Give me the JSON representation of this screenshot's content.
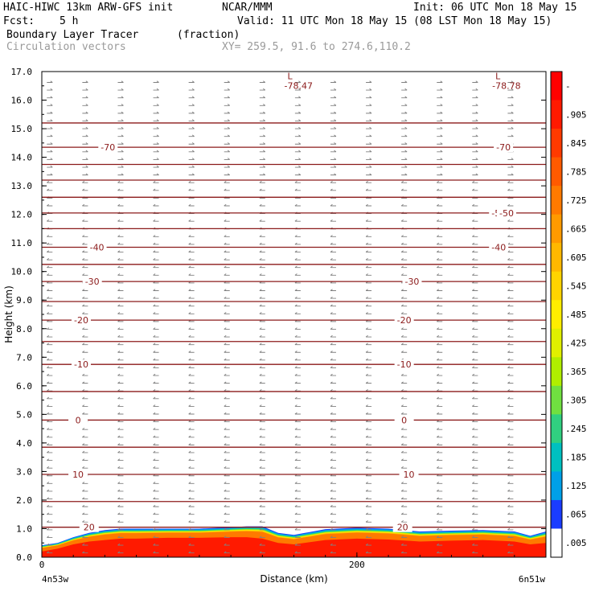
{
  "header": {
    "line1_left": "HAIC-HIWC 13km ARW-GFS init",
    "line1_mid": "NCAR/MMM",
    "line1_right": "Init: 06 UTC Mon 18 May 15",
    "fcst_label": "Fcst:",
    "fcst_value": "5 h",
    "valid": "Valid: 11 UTC Mon 18 May 15 (08 LST Mon 18 May 15)",
    "field_name": "Boundary Layer Tracer",
    "field_units": "(fraction)",
    "vectors_label": "Circulation vectors",
    "xy_label": "XY= 259.5, 91.6 to 274.6,110.2"
  },
  "chart_data": {
    "type": "heatmap",
    "title": "Boundary Layer Tracer",
    "units": "(fraction)",
    "xlabel": "Distance (km)",
    "ylabel": "Height (km)",
    "xlim": [
      0,
      320
    ],
    "ylim": [
      0,
      17
    ],
    "x_ticks": [
      {
        "value": 0,
        "label": "0"
      },
      {
        "value": 200,
        "label": "200"
      }
    ],
    "x_end_labels": {
      "left": "4n53w",
      "right": "6n51w"
    },
    "y_ticks": [
      {
        "value": 0,
        "label": "0.0"
      },
      {
        "value": 1,
        "label": "1.0"
      },
      {
        "value": 2,
        "label": "2.0"
      },
      {
        "value": 3,
        "label": "3.0"
      },
      {
        "value": 4,
        "label": "4.0"
      },
      {
        "value": 5,
        "label": "5.0"
      },
      {
        "value": 6,
        "label": "6.0"
      },
      {
        "value": 7,
        "label": "7.0"
      },
      {
        "value": 8,
        "label": "8.0"
      },
      {
        "value": 9,
        "label": "9.0"
      },
      {
        "value": 10,
        "label": "10.0"
      },
      {
        "value": 11,
        "label": "11.0"
      },
      {
        "value": 12,
        "label": "12.0"
      },
      {
        "value": 13,
        "label": "13.0"
      },
      {
        "value": 14,
        "label": "14.0"
      },
      {
        "value": 15,
        "label": "15.0"
      },
      {
        "value": 16,
        "label": "16.0"
      },
      {
        "value": 17,
        "label": "17.0"
      }
    ],
    "colorbar": {
      "labels": [
        "-",
        ".905",
        ".845",
        ".785",
        ".725",
        ".665",
        ".605",
        ".545",
        ".485",
        ".425",
        ".365",
        ".305",
        ".245",
        ".185",
        ".125",
        ".065",
        ".005"
      ],
      "colors": [
        "#ff0000",
        "#ff1a00",
        "#ff3a00",
        "#ff5a00",
        "#ff7a00",
        "#ff9a00",
        "#ffb800",
        "#ffd400",
        "#ffee00",
        "#e0f000",
        "#b0ee00",
        "#70e040",
        "#30d080",
        "#00c0c0",
        "#00a0e8",
        "#1a3cff",
        "#ffffff"
      ]
    },
    "tracer_profile": {
      "x_km": [
        0,
        10,
        20,
        30,
        40,
        50,
        60,
        80,
        100,
        120,
        130,
        140,
        150,
        160,
        180,
        200,
        220,
        240,
        260,
        280,
        300,
        310,
        320
      ],
      "top_km": [
        0.42,
        0.5,
        0.7,
        0.85,
        0.95,
        1.0,
        1.0,
        1.0,
        1.0,
        1.05,
        1.08,
        1.08,
        0.85,
        0.78,
        0.98,
        1.03,
        1.0,
        0.9,
        0.93,
        0.95,
        0.9,
        0.75,
        0.9
      ],
      "core_top_km": [
        0.2,
        0.3,
        0.45,
        0.55,
        0.6,
        0.65,
        0.65,
        0.68,
        0.68,
        0.7,
        0.7,
        0.65,
        0.5,
        0.45,
        0.6,
        0.65,
        0.62,
        0.55,
        0.58,
        0.6,
        0.55,
        0.45,
        0.5
      ]
    },
    "temperature_contours": [
      {
        "level": "20",
        "y_km": 1.05,
        "labels_at_km": [
          30,
          229
        ]
      },
      {
        "level": "",
        "y_km": 1.95,
        "labels_at_km": []
      },
      {
        "level": "10",
        "y_km": 2.9,
        "labels_at_km": [
          23,
          233
        ]
      },
      {
        "level": "",
        "y_km": 3.85,
        "labels_at_km": []
      },
      {
        "level": "0",
        "y_km": 4.8,
        "labels_at_km": [
          23,
          230
        ]
      },
      {
        "level": "",
        "y_km": 5.8,
        "labels_at_km": []
      },
      {
        "level": "-10",
        "y_km": 6.75,
        "labels_at_km": [
          25,
          230
        ]
      },
      {
        "level": "",
        "y_km": 7.55,
        "labels_at_km": []
      },
      {
        "level": "-20",
        "y_km": 8.3,
        "labels_at_km": [
          25,
          230
        ]
      },
      {
        "level": "",
        "y_km": 8.95,
        "labels_at_km": []
      },
      {
        "level": "-30",
        "y_km": 9.65,
        "labels_at_km": [
          32,
          235
        ]
      },
      {
        "level": "",
        "y_km": 10.25,
        "labels_at_km": []
      },
      {
        "level": "-40",
        "y_km": 10.85,
        "labels_at_km": [
          35,
          290
        ]
      },
      {
        "level": "",
        "y_km": 11.5,
        "labels_at_km": []
      },
      {
        "level": "-50",
        "y_km": 12.05,
        "labels_at_km": [
          290,
          295
        ]
      },
      {
        "level": "",
        "y_km": 12.6,
        "labels_at_km": []
      },
      {
        "level": "",
        "y_km": 13.2,
        "labels_at_km": []
      },
      {
        "level": "",
        "y_km": 13.75,
        "labels_at_km": []
      },
      {
        "level": "-70",
        "y_km": 14.35,
        "labels_at_km": [
          42,
          293
        ]
      },
      {
        "level": "",
        "y_km": 15.2,
        "labels_at_km": []
      }
    ],
    "lows": [
      {
        "symbol": "L",
        "value": "-78.47",
        "x_km": 160,
        "y_km": 16.7
      },
      {
        "symbol": "L",
        "value": "-78.78",
        "x_km": 292,
        "y_km": 16.7
      }
    ],
    "vector_color": "#808080",
    "contour_color": "#8b1a1a"
  }
}
